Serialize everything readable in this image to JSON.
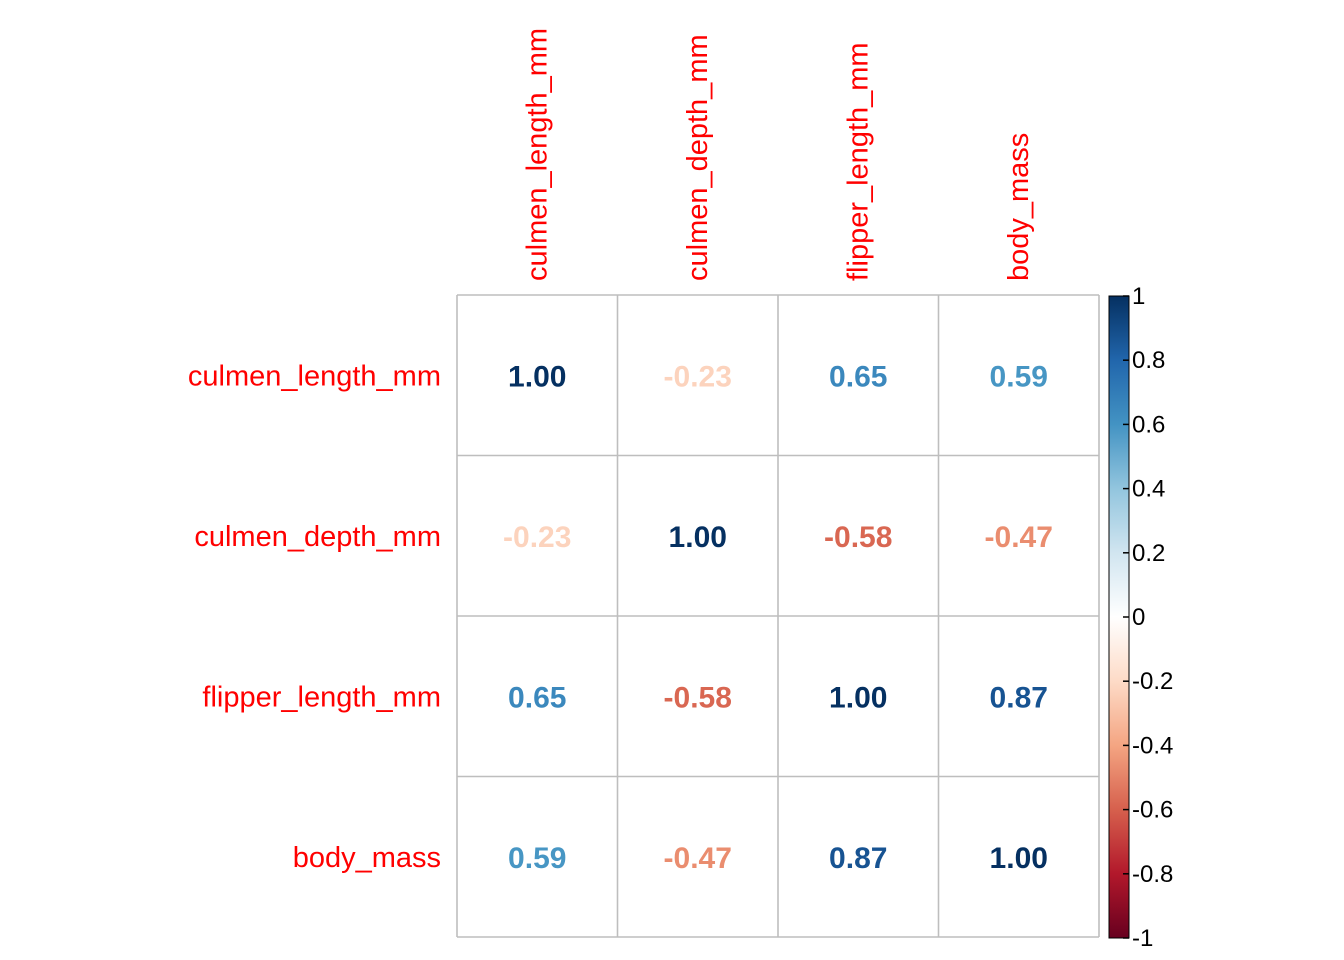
{
  "chart_data": {
    "type": "heatmap",
    "method": "number",
    "variables": [
      "culmen_length_mm",
      "culmen_depth_mm",
      "flipper_length_mm",
      "body_mass"
    ],
    "matrix": [
      [
        1.0,
        -0.23,
        0.65,
        0.59
      ],
      [
        -0.23,
        1.0,
        -0.58,
        -0.47
      ],
      [
        0.65,
        -0.58,
        1.0,
        0.87
      ],
      [
        0.59,
        -0.47,
        0.87,
        1.0
      ]
    ],
    "value_format": "2 decimals",
    "label_color": "#ff0000",
    "grid_color": "#bebebe",
    "colorbar": {
      "range": [
        -1,
        1
      ],
      "ticks": [
        "1",
        "0.8",
        "0.6",
        "0.4",
        "0.2",
        "0",
        "-0.2",
        "-0.4",
        "-0.6",
        "-0.8",
        "-1"
      ],
      "position": "right",
      "palette": [
        "#67001f",
        "#b2182b",
        "#d6604d",
        "#f4a582",
        "#fddbc7",
        "#ffffff",
        "#d1e5f0",
        "#92c5de",
        "#4393c3",
        "#2166ac",
        "#053061"
      ]
    }
  }
}
